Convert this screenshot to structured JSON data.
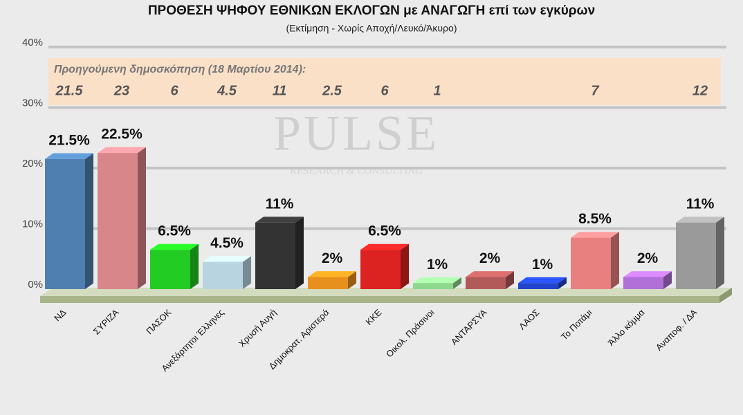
{
  "chart_data": {
    "type": "bar",
    "title": "ΠΡΟΘΕΣΗ ΨΗΦΟΥ ΕΘΝΙΚΩΝ ΕΚΛΟΓΩΝ με ΑΝΑΓΩΓΗ επί των εγκύρων",
    "subtitle": "(Εκτίμηση  -  Χωρίς Αποχή/Λευκό/Άκυρο)",
    "categories": [
      "ΝΔ",
      "ΣΥΡΙΖΑ",
      "ΠΑΣΟΚ",
      "Ανεξάρτητοι Έλληνες",
      "Χρυσή Αυγή",
      "Δημοκρατ. Αριστερά",
      "ΚΚΕ",
      "Οικολ. Πράσινοι",
      "ΑΝΤΑΡΣΥΑ",
      "ΛΑΟΣ",
      "Το Ποτάμι",
      "Άλλο κόμμα",
      "Αναποφ. / ΔΑ"
    ],
    "values": [
      21.5,
      22.5,
      6.5,
      4.5,
      11,
      2,
      6.5,
      1,
      2,
      1,
      8.5,
      2,
      11
    ],
    "value_labels": [
      "21.5%",
      "22.5%",
      "6.5%",
      "4.5%",
      "11%",
      "2%",
      "6.5%",
      "1%",
      "2%",
      "1%",
      "8.5%",
      "2%",
      "11%"
    ],
    "colors": [
      "#4f7fb0",
      "#d9868a",
      "#22cc22",
      "#b8d4e0",
      "#333333",
      "#e8901e",
      "#dd2222",
      "#8ed88e",
      "#b25a5a",
      "#2244cc",
      "#e88080",
      "#b070d8",
      "#9a9a9a"
    ],
    "ylim": [
      0,
      40
    ],
    "yticks": [
      {
        "value": 0,
        "label": "0%"
      },
      {
        "value": 10,
        "label": "10%"
      },
      {
        "value": 20,
        "label": "20%"
      },
      {
        "value": 30,
        "label": "30%"
      },
      {
        "value": 40,
        "label": "40%"
      }
    ],
    "grid": true,
    "previous_poll": {
      "label": "Προηγούμενη δημοσκόπηση (18 Μαρτίου 2014):",
      "values": [
        21.5,
        23,
        6,
        4.5,
        11,
        2.5,
        6,
        1,
        null,
        null,
        7,
        null,
        12
      ]
    },
    "watermark": {
      "name": "PULSE",
      "tagline": "RESEARCH & CONSULTING"
    }
  }
}
